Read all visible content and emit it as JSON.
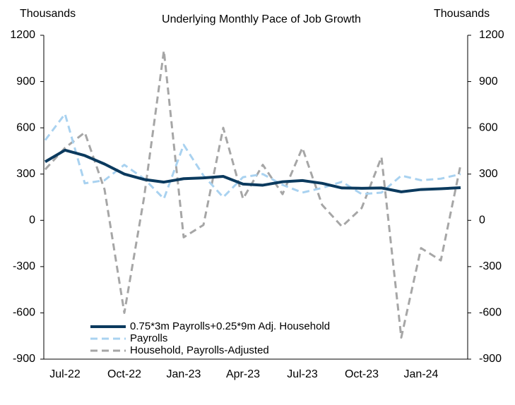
{
  "chart_data": {
    "type": "line",
    "title": "Underlying Monthly Pace of Job Growth",
    "y_label": "Thousands",
    "y2_label": "Thousands",
    "categories": [
      null,
      "Jul-22",
      null,
      null,
      "Oct-22",
      null,
      null,
      "Jan-23",
      null,
      null,
      "Apr-23",
      null,
      null,
      "Jul-23",
      null,
      null,
      "Oct-23",
      null,
      null,
      "Jan-24",
      null,
      null
    ],
    "series": [
      {
        "name": "0.75*3m Payrolls+0.25*9m Adj. Household",
        "color": "#0b3a5e",
        "style": "solid",
        "values": [
          380,
          455,
          420,
          365,
          300,
          265,
          248,
          270,
          275,
          285,
          235,
          228,
          250,
          258,
          240,
          210,
          208,
          210,
          185,
          200,
          205,
          212
        ]
      },
      {
        "name": "Payrolls",
        "color": "#a9d2f0",
        "style": "dashed",
        "values": [
          520,
          690,
          240,
          260,
          360,
          270,
          140,
          490,
          290,
          150,
          280,
          300,
          230,
          180,
          210,
          250,
          170,
          180,
          290,
          260,
          270,
          300
        ]
      },
      {
        "name": "Household, Payrolls-Adjusted",
        "color": "#a6a6a6",
        "style": "dashed",
        "values": [
          330,
          470,
          570,
          200,
          -600,
          150,
          1100,
          -110,
          -30,
          600,
          140,
          360,
          170,
          470,
          100,
          -40,
          80,
          410,
          -760,
          -180,
          -260,
          360
        ]
      }
    ],
    "ylim": [
      -900,
      1200
    ],
    "yticks": [
      -900,
      -600,
      -300,
      0,
      300,
      600,
      900,
      1200
    ],
    "y2lim": [
      -900,
      1200
    ],
    "y2ticks": [
      -900,
      -600,
      -300,
      0,
      300,
      600,
      900,
      1200
    ],
    "grid": false
  }
}
